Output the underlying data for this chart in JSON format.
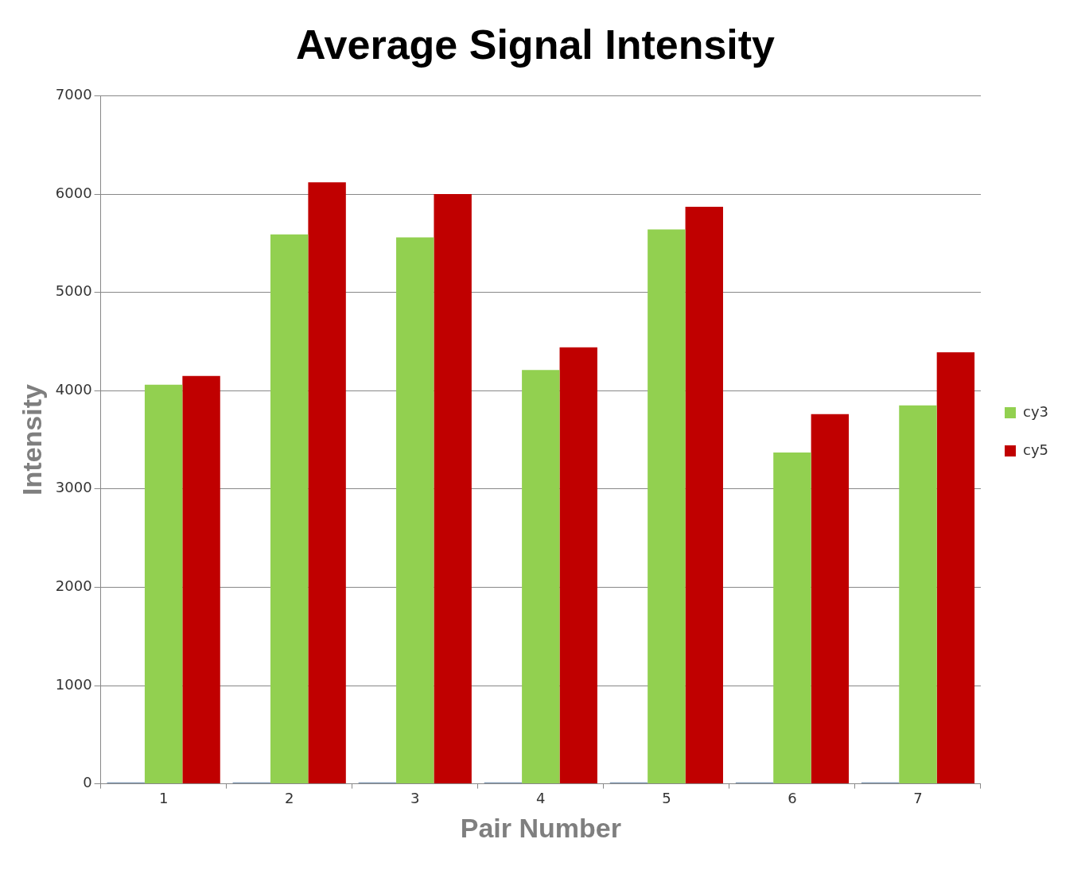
{
  "chart_data": {
    "type": "bar",
    "title": "Average Signal Intensity",
    "xlabel": "Pair Number",
    "ylabel": "Intensity",
    "categories": [
      "1",
      "2",
      "3",
      "4",
      "5",
      "6",
      "7"
    ],
    "series": [
      {
        "color": "#7f97b2",
        "values": [
          15,
          15,
          15,
          15,
          15,
          15,
          15
        ]
      },
      {
        "name": "cy3",
        "color": "#92d050",
        "values": [
          4060,
          5590,
          5560,
          4210,
          5640,
          3370,
          3850
        ]
      },
      {
        "name": "cy5",
        "color": "#c00000",
        "values": [
          4150,
          6120,
          6000,
          4440,
          5870,
          3760,
          4390
        ]
      }
    ],
    "ylim": [
      0,
      7000
    ],
    "yticks": [
      0,
      1000,
      2000,
      3000,
      4000,
      5000,
      6000,
      7000
    ],
    "grid": "y",
    "legend": "right"
  }
}
